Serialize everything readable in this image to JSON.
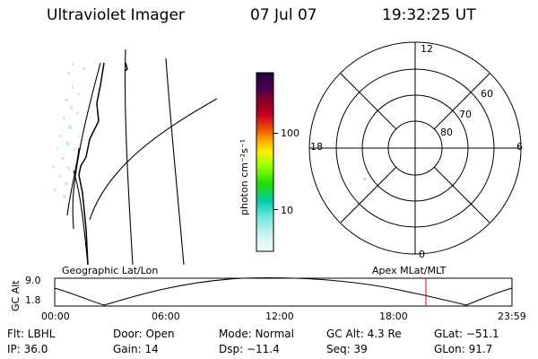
{
  "header": {
    "instrument": "Ultraviolet Imager",
    "date": "07 Jul 07",
    "time": "19:32:25 UT"
  },
  "left_panel": {
    "projection_label": "Geographic Lat/Lon"
  },
  "colorbar": {
    "label": "photon cm⁻²s⁻¹",
    "ticks": [
      "100",
      "10"
    ],
    "scale": "log",
    "colors_top_to_bottom": [
      "#220033",
      "#330044",
      "#440055",
      "#660033",
      "#880022",
      "#aa0011",
      "#cc0022",
      "#dd2200",
      "#ee5500",
      "#ff8800",
      "#ffaa00",
      "#ffcc00",
      "#ffee00",
      "#ccff00",
      "#99ff00",
      "#55ee00",
      "#22dd00",
      "#11cc33",
      "#00ccaa",
      "#33ddcc",
      "#88eedd",
      "#bbf0ee",
      "#ddf5f5",
      "#f4fbfb"
    ]
  },
  "polar": {
    "mlt_labels": {
      "top": "12",
      "bottom": "0",
      "left": "18",
      "right": "6"
    },
    "lat_labels": [
      "60",
      "70",
      "80"
    ],
    "projection_label": "Apex MLat/MLT"
  },
  "altitude_plot": {
    "ylabel": "GC Alt",
    "yticks": [
      "9.0",
      "1.8"
    ],
    "xticks": [
      "00:00",
      "06:00",
      "12:00",
      "18:00",
      "23:59"
    ],
    "current_time_marker_color": "#cc0000"
  },
  "info": {
    "flt": "Flt: LBHL",
    "ip": "IP: 36.0",
    "door": "Door: Open",
    "gain": "Gain: 14",
    "mode": "Mode: Normal",
    "dsp": "Dsp:  −11.4",
    "gcalt": "GC Alt: 4.3 Re",
    "seq": "Seq: 39",
    "glat": "GLat: −51.1",
    "glon": "GLon:  91.7"
  }
}
